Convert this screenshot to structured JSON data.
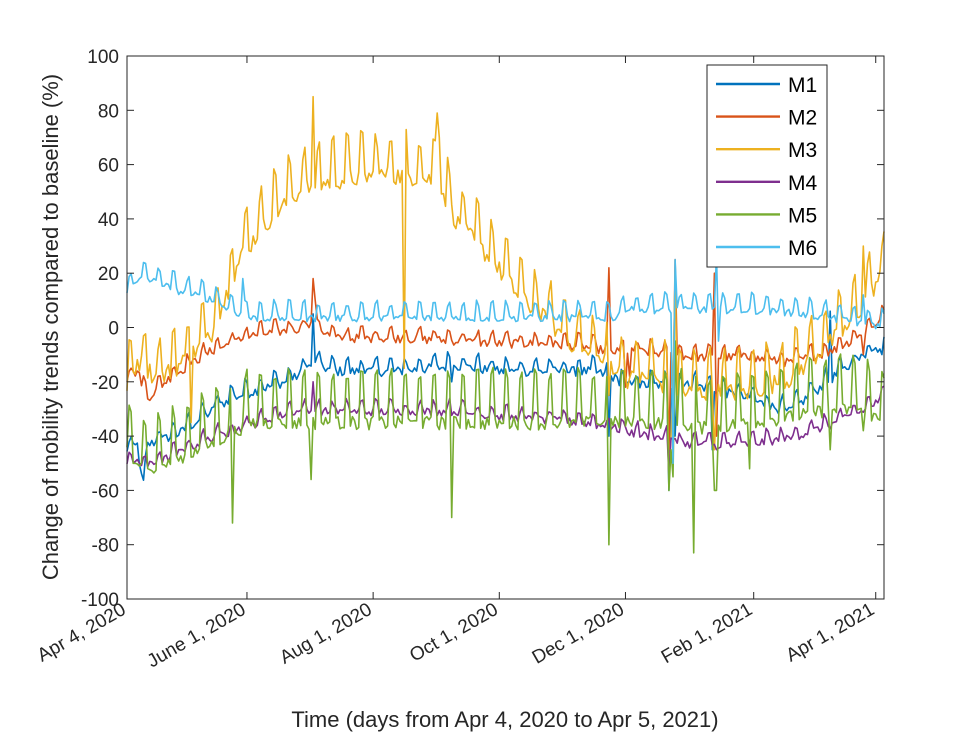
{
  "chart_data": {
    "type": "line",
    "title": "",
    "xlabel": "Time (days from Apr 4, 2020 to Apr 5, 2021)",
    "ylabel": "Change of mobility trends compared to baseline (%)",
    "xlim": [
      0,
      366
    ],
    "ylim": [
      -100,
      100
    ],
    "yticks": [
      -100,
      -80,
      -60,
      -40,
      -20,
      0,
      20,
      40,
      60,
      80,
      100
    ],
    "ytick_labels": [
      "-100",
      "-80",
      "-60",
      "-40",
      "-20",
      "0",
      "20",
      "40",
      "60",
      "80",
      "100"
    ],
    "xticks": [
      {
        "day": 0,
        "label": "Apr 4, 2020"
      },
      {
        "day": 58,
        "label": "June 1, 2020"
      },
      {
        "day": 119,
        "label": "Aug 1, 2020"
      },
      {
        "day": 180,
        "label": "Oct 1, 2020"
      },
      {
        "day": 241,
        "label": "Dec 1, 2020"
      },
      {
        "day": 303,
        "label": "Feb 1, 2021"
      },
      {
        "day": 362,
        "label": "Apr 1, 2021"
      }
    ],
    "legend_position": "top-right",
    "series": [
      {
        "name": "M1",
        "color": "#0072BD",
        "anchors": [
          [
            0,
            -45
          ],
          [
            5,
            -42
          ],
          [
            8,
            -60
          ],
          [
            10,
            -42
          ],
          [
            25,
            -38
          ],
          [
            50,
            -25
          ],
          [
            80,
            -18
          ],
          [
            90,
            -12
          ],
          [
            100,
            -15
          ],
          [
            130,
            -15
          ],
          [
            160,
            -13
          ],
          [
            180,
            -15
          ],
          [
            200,
            -15
          ],
          [
            225,
            -15
          ],
          [
            235,
            -17
          ],
          [
            241,
            -20
          ],
          [
            250,
            -20
          ],
          [
            275,
            -20
          ],
          [
            300,
            -25
          ],
          [
            320,
            -30
          ],
          [
            340,
            -18
          ],
          [
            355,
            -10
          ],
          [
            366,
            -5
          ]
        ],
        "weekly_amp": 3,
        "noise": 1.8,
        "spikes": [
          [
            90,
            5
          ],
          [
            157,
            -20
          ],
          [
            219,
            -12
          ],
          [
            233,
            -40
          ],
          [
            262,
            -60
          ],
          [
            265,
            -40
          ],
          [
            283,
            -45
          ],
          [
            340,
            6
          ],
          [
            365,
            -10
          ]
        ]
      },
      {
        "name": "M2",
        "color": "#D95319",
        "anchors": [
          [
            0,
            -18
          ],
          [
            5,
            -15
          ],
          [
            10,
            -25
          ],
          [
            20,
            -18
          ],
          [
            40,
            -8
          ],
          [
            60,
            -2
          ],
          [
            80,
            0
          ],
          [
            90,
            2
          ],
          [
            100,
            -3
          ],
          [
            130,
            -3
          ],
          [
            160,
            -4
          ],
          [
            180,
            -5
          ],
          [
            200,
            -5
          ],
          [
            220,
            -6
          ],
          [
            235,
            -8
          ],
          [
            241,
            -8
          ],
          [
            250,
            -8
          ],
          [
            275,
            -10
          ],
          [
            300,
            -10
          ],
          [
            320,
            -12
          ],
          [
            340,
            -8
          ],
          [
            355,
            -2
          ],
          [
            366,
            5
          ]
        ],
        "weekly_amp": 2.5,
        "noise": 1.6,
        "spikes": [
          [
            90,
            18
          ],
          [
            91,
            10
          ],
          [
            233,
            22
          ],
          [
            241,
            -22
          ],
          [
            243,
            -18
          ],
          [
            262,
            -45
          ],
          [
            264,
            -30
          ],
          [
            265,
            25
          ],
          [
            284,
            20
          ],
          [
            285,
            -40
          ],
          [
            356,
            -10
          ]
        ]
      },
      {
        "name": "M3",
        "color": "#EDB120",
        "anchors": [
          [
            0,
            -20
          ],
          [
            5,
            -8
          ],
          [
            15,
            -15
          ],
          [
            25,
            -10
          ],
          [
            40,
            0
          ],
          [
            55,
            30
          ],
          [
            70,
            45
          ],
          [
            85,
            55
          ],
          [
            100,
            58
          ],
          [
            120,
            60
          ],
          [
            135,
            60
          ],
          [
            150,
            58
          ],
          [
            160,
            42
          ],
          [
            175,
            30
          ],
          [
            190,
            15
          ],
          [
            205,
            5
          ],
          [
            220,
            -5
          ],
          [
            235,
            -10
          ],
          [
            241,
            -15
          ],
          [
            255,
            -15
          ],
          [
            265,
            -20
          ],
          [
            280,
            -20
          ],
          [
            300,
            -20
          ],
          [
            320,
            -15
          ],
          [
            335,
            -5
          ],
          [
            350,
            5
          ],
          [
            366,
            25
          ]
        ],
        "weekly_amp": 10,
        "noise": 3.5,
        "spikes": [
          [
            31,
            -35
          ],
          [
            90,
            85
          ],
          [
            134,
            -15
          ],
          [
            150,
            79
          ],
          [
            151,
            70
          ],
          [
            233,
            -25
          ],
          [
            262,
            -55
          ],
          [
            263,
            -40
          ],
          [
            265,
            20
          ],
          [
            284,
            -45
          ],
          [
            356,
            30
          ],
          [
            365,
            30
          ]
        ]
      },
      {
        "name": "M4",
        "color": "#7E2F8E",
        "anchors": [
          [
            0,
            -48
          ],
          [
            10,
            -50
          ],
          [
            20,
            -47
          ],
          [
            40,
            -40
          ],
          [
            60,
            -35
          ],
          [
            80,
            -30
          ],
          [
            100,
            -30
          ],
          [
            130,
            -30
          ],
          [
            160,
            -30
          ],
          [
            180,
            -32
          ],
          [
            200,
            -33
          ],
          [
            220,
            -34
          ],
          [
            235,
            -36
          ],
          [
            245,
            -38
          ],
          [
            260,
            -40
          ],
          [
            270,
            -42
          ],
          [
            285,
            -42
          ],
          [
            300,
            -42
          ],
          [
            320,
            -40
          ],
          [
            340,
            -35
          ],
          [
            355,
            -30
          ],
          [
            366,
            -25
          ]
        ],
        "weekly_amp": 2.5,
        "noise": 1.5,
        "spikes": [
          [
            90,
            -20
          ],
          [
            262,
            -55
          ],
          [
            285,
            -45
          ],
          [
            292,
            -44
          ]
        ]
      },
      {
        "name": "M5",
        "color": "#77AC30",
        "anchors": [
          [
            0,
            -40
          ],
          [
            10,
            -48
          ],
          [
            20,
            -45
          ],
          [
            40,
            -38
          ],
          [
            60,
            -30
          ],
          [
            80,
            -30
          ],
          [
            100,
            -30
          ],
          [
            130,
            -30
          ],
          [
            160,
            -30
          ],
          [
            180,
            -30
          ],
          [
            200,
            -30
          ],
          [
            220,
            -30
          ],
          [
            235,
            -30
          ],
          [
            250,
            -30
          ],
          [
            265,
            -30
          ],
          [
            280,
            -32
          ],
          [
            300,
            -30
          ],
          [
            320,
            -28
          ],
          [
            340,
            -25
          ],
          [
            355,
            -25
          ],
          [
            366,
            -30
          ]
        ],
        "weekly_amp": 13,
        "noise": 2.5,
        "spikes": [
          [
            51,
            -72
          ],
          [
            89,
            -56
          ],
          [
            157,
            -70
          ],
          [
            233,
            -80
          ],
          [
            262,
            -60
          ],
          [
            263,
            -45
          ],
          [
            264,
            -55
          ],
          [
            265,
            -5
          ],
          [
            274,
            -83
          ],
          [
            284,
            -60
          ],
          [
            285,
            -60
          ],
          [
            301,
            -52
          ],
          [
            340,
            -45
          ],
          [
            356,
            -38
          ]
        ]
      },
      {
        "name": "M6",
        "color": "#4DBEEE",
        "anchors": [
          [
            0,
            15
          ],
          [
            8,
            20
          ],
          [
            15,
            18
          ],
          [
            25,
            15
          ],
          [
            40,
            12
          ],
          [
            50,
            8
          ],
          [
            60,
            5
          ],
          [
            80,
            5
          ],
          [
            100,
            5
          ],
          [
            130,
            5
          ],
          [
            160,
            5
          ],
          [
            180,
            5
          ],
          [
            200,
            5
          ],
          [
            220,
            5
          ],
          [
            235,
            5
          ],
          [
            241,
            8
          ],
          [
            250,
            8
          ],
          [
            260,
            8
          ],
          [
            270,
            8
          ],
          [
            280,
            8
          ],
          [
            290,
            8
          ],
          [
            300,
            8
          ],
          [
            320,
            7
          ],
          [
            340,
            5
          ],
          [
            355,
            3
          ],
          [
            366,
            2
          ]
        ],
        "weekly_amp": 4,
        "noise": 1.3,
        "spikes": [
          [
            56,
            18
          ],
          [
            264,
            -50
          ],
          [
            265,
            10
          ],
          [
            265,
            25
          ],
          [
            285,
            27
          ],
          [
            286,
            -5
          ],
          [
            356,
            12
          ]
        ]
      }
    ]
  }
}
